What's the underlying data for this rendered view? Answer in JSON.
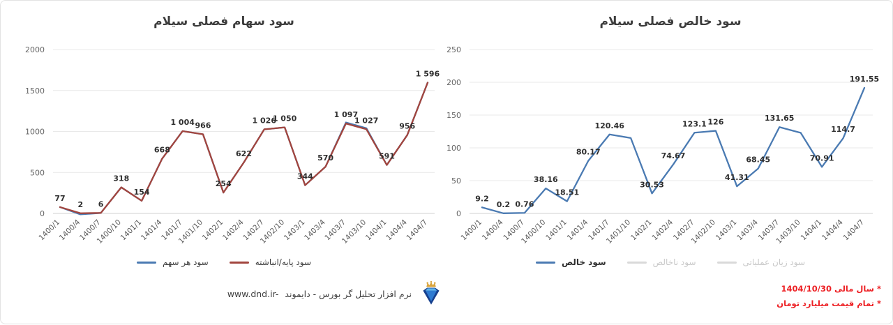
{
  "chart_data": [
    {
      "type": "line",
      "title": "سود سهام فصلی سیلام",
      "categories": [
        "1400/1",
        "1400/4",
        "1400/7",
        "1400/10",
        "1401/1",
        "1401/4",
        "1401/7",
        "1401/10",
        "1402/1",
        "1402/4",
        "1402/7",
        "1402/10",
        "1403/1",
        "1403/4",
        "1403/7",
        "1403/10",
        "1404/1",
        "1404/4",
        "1404/7"
      ],
      "series": [
        {
          "name": "سود هر سهم",
          "color": "#4a7ab2",
          "values": [
            77,
            -12,
            6,
            318,
            154,
            668,
            1004,
            966,
            254,
            622,
            1026,
            1050,
            344,
            570,
            1110,
            1040,
            591,
            956,
            1596
          ]
        },
        {
          "name": "سود پایه/انباشته",
          "color": "#a2453e",
          "values": [
            77,
            2,
            6,
            318,
            154,
            668,
            1004,
            966,
            254,
            622,
            1026,
            1050,
            344,
            570,
            1097,
            1027,
            591,
            956,
            1596
          ],
          "point_labels": [
            "77",
            "2",
            "6",
            "318",
            "154",
            "668",
            "1 004",
            "966",
            "254",
            "622",
            "1 026",
            "1 050",
            "344",
            "570",
            "1 097",
            "1 027",
            "591",
            "956",
            "1 596"
          ]
        }
      ],
      "ylim": [
        0,
        2000
      ],
      "yticks": [
        0,
        500,
        1000,
        1500,
        2000
      ],
      "grid": true,
      "legend_position": "bottom"
    },
    {
      "type": "line",
      "title": "سود خالص فصلی سیلام",
      "categories": [
        "1400/1",
        "1400/4",
        "1400/7",
        "1400/10",
        "1401/1",
        "1401/4",
        "1401/7",
        "1401/10",
        "1402/1",
        "1402/4",
        "1402/7",
        "1402/10",
        "1403/1",
        "1403/4",
        "1403/7",
        "1403/10",
        "1404/1",
        "1404/4",
        "1404/7"
      ],
      "series": [
        {
          "name": "سود خالص",
          "color": "#4a7ab2",
          "values": [
            9.2,
            0.2,
            0.76,
            38.16,
            18.51,
            80.17,
            120.46,
            115,
            30.53,
            74.67,
            123.1,
            126,
            41.31,
            68.45,
            131.65,
            123,
            70.91,
            114.7,
            191.55
          ],
          "point_labels": [
            "9.2",
            "0.2",
            "0.76",
            "38.16",
            "18.51",
            "80.17",
            "120.46",
            "",
            "30.53",
            "74.67",
            "123.1",
            "126",
            "41.31",
            "68.45",
            "131.65",
            "",
            "70.91",
            "114.7",
            "191.55"
          ]
        },
        {
          "name": "سود ناخالص",
          "color": "#d9d9d9",
          "disabled": true,
          "values": []
        },
        {
          "name": "سود زیان عملیاتی",
          "color": "#d9d9d9",
          "disabled": true,
          "values": []
        }
      ],
      "ylim": [
        0,
        250
      ],
      "yticks": [
        0,
        50,
        100,
        150,
        200,
        250
      ],
      "grid": true,
      "legend_position": "bottom"
    }
  ],
  "footer": {
    "url": "www.dnd.ir-",
    "app_name": "نرم افزار تحلیل گر بورس - دایموند",
    "logo": "diamond-crown-logo"
  },
  "notes": {
    "color": "#ed2024",
    "lines": [
      "* سال مالی 1404/10/30",
      "* تمام قیمت میلیارد تومان"
    ]
  }
}
